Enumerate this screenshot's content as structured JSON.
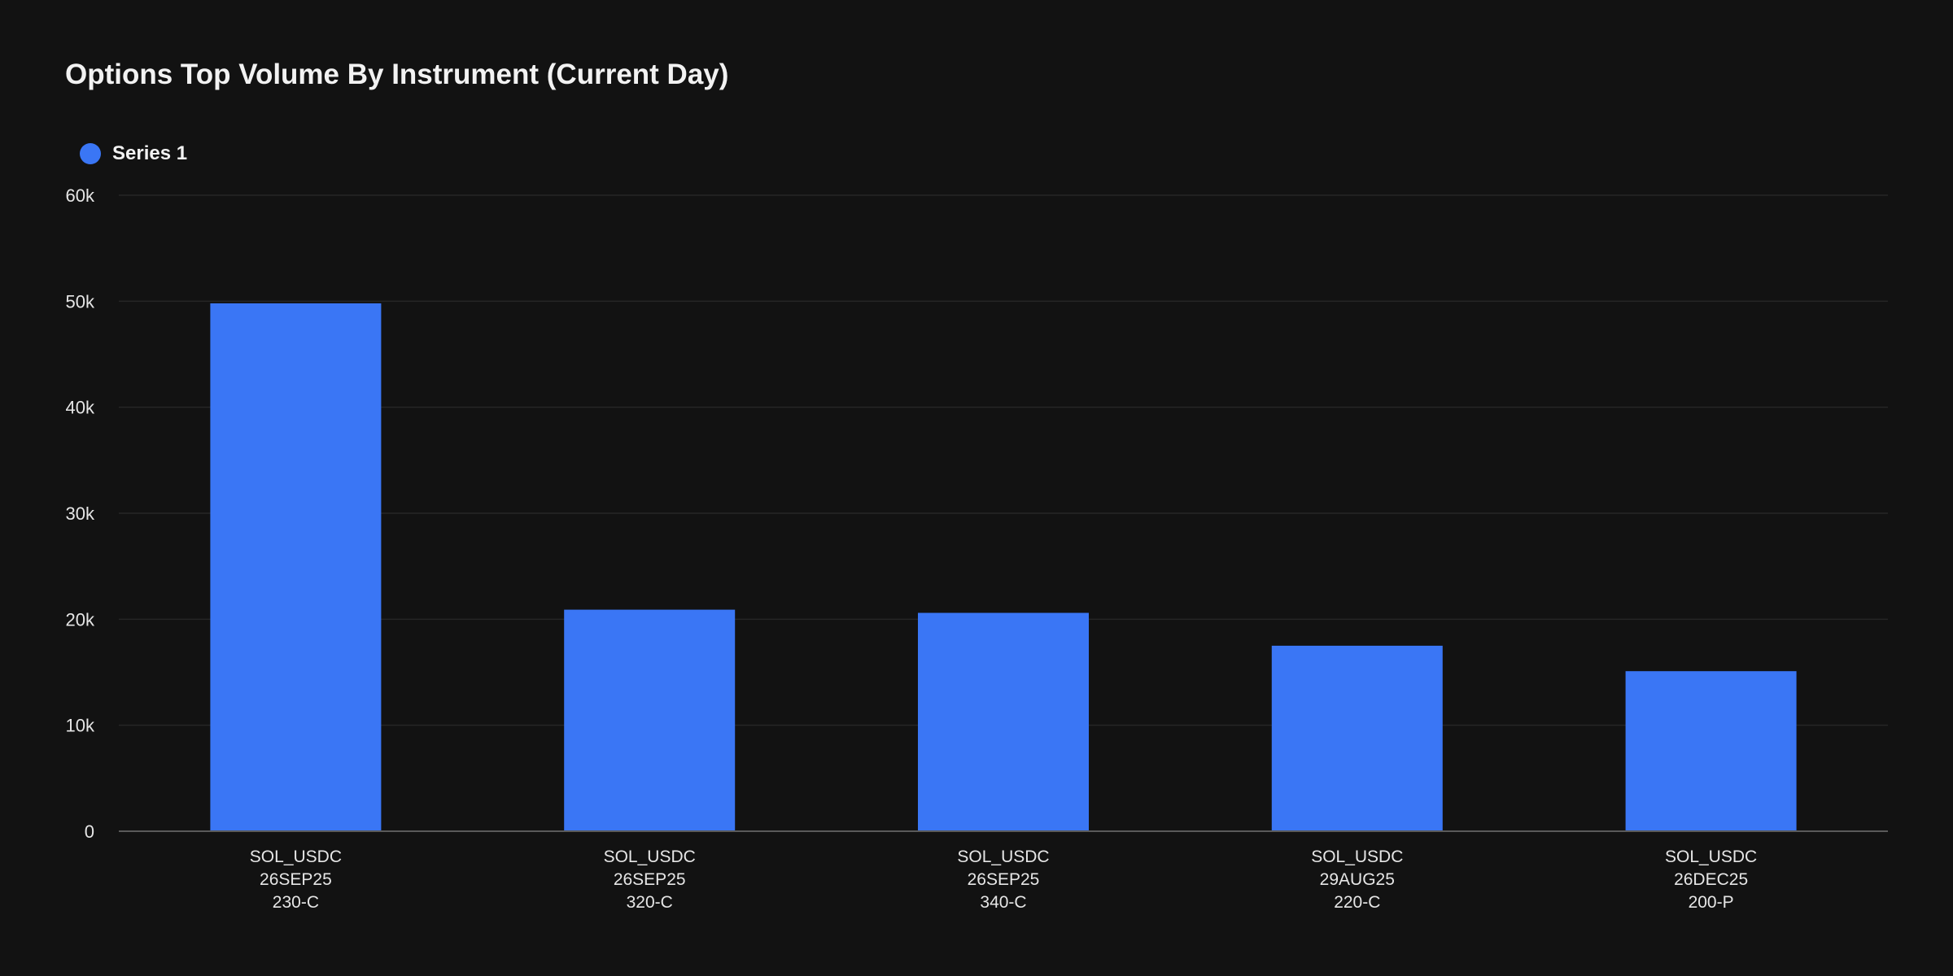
{
  "chart_data": {
    "type": "bar",
    "title": "Options Top Volume By Instrument (Current Day)",
    "xlabel": "",
    "ylabel": "",
    "categories": [
      [
        "SOL_USDC",
        "26SEP25",
        "230-C"
      ],
      [
        "SOL_USDC",
        "26SEP25",
        "320-C"
      ],
      [
        "SOL_USDC",
        "26SEP25",
        "340-C"
      ],
      [
        "SOL_USDC",
        "29AUG25",
        "220-C"
      ],
      [
        "SOL_USDC",
        "26DEC25",
        "200-P"
      ]
    ],
    "series": [
      {
        "name": "Series 1",
        "color": "#3a76f5",
        "values": [
          49800,
          20900,
          20600,
          17500,
          15100
        ]
      }
    ],
    "ylim": [
      0,
      60000
    ],
    "yticks": [
      0,
      10000,
      20000,
      30000,
      40000,
      50000,
      60000
    ],
    "ytick_labels": [
      "0",
      "10k",
      "20k",
      "30k",
      "40k",
      "50k",
      "60k"
    ],
    "grid": true,
    "legend_position": "top-left"
  },
  "colors": {
    "background": "#121212",
    "grid": "#262626",
    "axis": "#5a5a5a",
    "text": "#e6e6e6"
  }
}
